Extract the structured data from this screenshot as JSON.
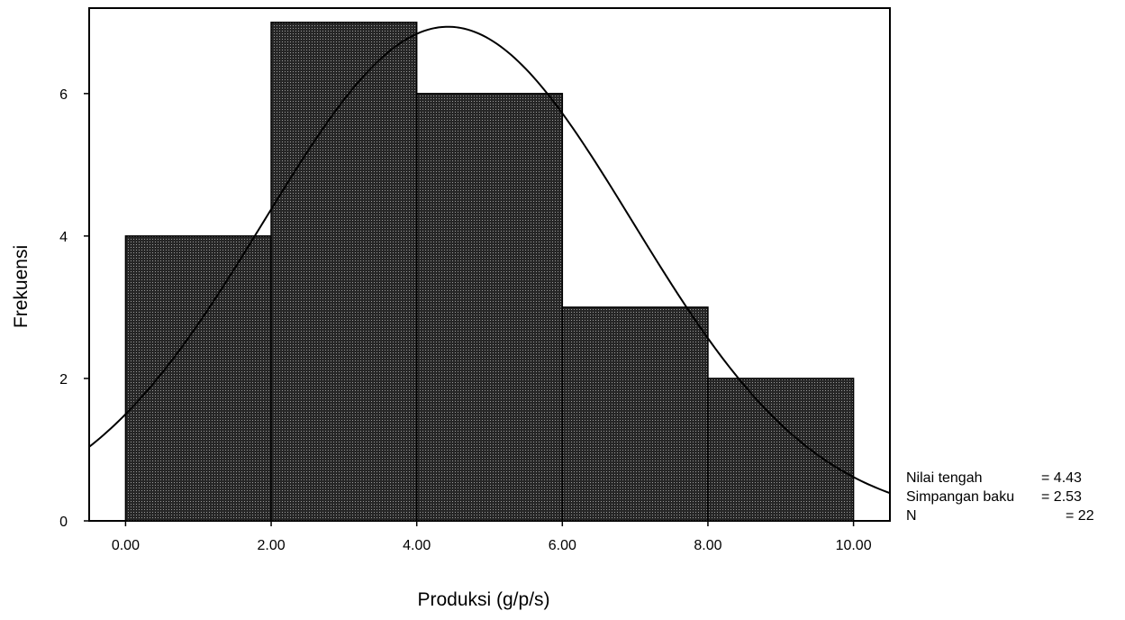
{
  "chart_data": {
    "type": "bar",
    "subtype": "histogram",
    "bins": [
      {
        "from": 0,
        "to": 2,
        "count": 4
      },
      {
        "from": 2,
        "to": 4,
        "count": 7
      },
      {
        "from": 4,
        "to": 6,
        "count": 6
      },
      {
        "from": 6,
        "to": 8,
        "count": 3
      },
      {
        "from": 8,
        "to": 10,
        "count": 2
      }
    ],
    "xlabel": "Produksi (g/p/s)",
    "ylabel": "Frekuensi",
    "xlim": [
      -0.5,
      10.5
    ],
    "ylim": [
      0,
      7.2
    ],
    "x_ticks": [
      {
        "value": 0,
        "label": "0.00"
      },
      {
        "value": 2,
        "label": "2.00"
      },
      {
        "value": 4,
        "label": "4.00"
      },
      {
        "value": 6,
        "label": "6.00"
      },
      {
        "value": 8,
        "label": "8.00"
      },
      {
        "value": 10,
        "label": "10.00"
      }
    ],
    "y_ticks": [
      {
        "value": 0,
        "label": "0"
      },
      {
        "value": 2,
        "label": "2"
      },
      {
        "value": 4,
        "label": "4"
      },
      {
        "value": 6,
        "label": "6"
      }
    ],
    "normal_curve": {
      "mean": 4.43,
      "sd": 2.53,
      "n": 22,
      "bin_width": 2
    },
    "bar_fill": "#262626",
    "grid": false,
    "stats": [
      {
        "label": "Nilai tengah",
        "value": "= 4.43"
      },
      {
        "label": "Simpangan baku",
        "value": "= 2.53"
      },
      {
        "label": "N",
        "value": "= 22"
      }
    ]
  }
}
